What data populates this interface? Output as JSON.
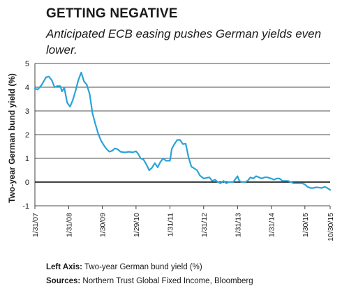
{
  "chart_data": {
    "type": "line",
    "title": "GETTING NEGATIVE",
    "subtitle": "Anticipated ECB easing pushes German yields even lower.",
    "ylabel": "Two-year German bund yield (%)",
    "xlabel": "",
    "ylim": [
      -1,
      5
    ],
    "yticks": [
      -1,
      0,
      1,
      2,
      3,
      4,
      5
    ],
    "xlim": [
      "2007-01-31",
      "2015-10-30"
    ],
    "xticks": [
      "1/31/07",
      "1/31/08",
      "1/30/09",
      "1/29/10",
      "1/31/11",
      "1/31/12",
      "1/31/13",
      "1/31/14",
      "1/30/15",
      "10/30/15"
    ],
    "grid": "horizontal",
    "series": [
      {
        "color": "#2aa3d9",
        "points": [
          [
            "2007-01-31",
            3.95
          ],
          [
            "2007-03-01",
            3.9
          ],
          [
            "2007-04-15",
            4.1
          ],
          [
            "2007-06-01",
            4.42
          ],
          [
            "2007-07-01",
            4.45
          ],
          [
            "2007-08-01",
            4.3
          ],
          [
            "2007-09-01",
            4.0
          ],
          [
            "2007-10-01",
            4.05
          ],
          [
            "2007-11-01",
            4.05
          ],
          [
            "2007-11-20",
            3.82
          ],
          [
            "2007-12-15",
            3.98
          ],
          [
            "2008-01-15",
            3.35
          ],
          [
            "2008-02-15",
            3.18
          ],
          [
            "2008-03-15",
            3.45
          ],
          [
            "2008-04-15",
            3.85
          ],
          [
            "2008-05-15",
            4.3
          ],
          [
            "2008-06-15",
            4.62
          ],
          [
            "2008-07-15",
            4.25
          ],
          [
            "2008-08-15",
            4.1
          ],
          [
            "2008-09-15",
            3.7
          ],
          [
            "2008-10-15",
            2.9
          ],
          [
            "2008-11-15",
            2.45
          ],
          [
            "2008-12-15",
            2.05
          ],
          [
            "2009-01-15",
            1.75
          ],
          [
            "2009-02-15",
            1.55
          ],
          [
            "2009-03-15",
            1.4
          ],
          [
            "2009-04-15",
            1.28
          ],
          [
            "2009-05-15",
            1.32
          ],
          [
            "2009-06-15",
            1.42
          ],
          [
            "2009-07-15",
            1.38
          ],
          [
            "2009-08-15",
            1.28
          ],
          [
            "2009-10-01",
            1.25
          ],
          [
            "2009-11-15",
            1.28
          ],
          [
            "2009-12-20",
            1.25
          ],
          [
            "2010-01-29",
            1.3
          ],
          [
            "2010-02-20",
            1.2
          ],
          [
            "2010-03-20",
            1.0
          ],
          [
            "2010-04-20",
            0.95
          ],
          [
            "2010-05-20",
            0.75
          ],
          [
            "2010-06-20",
            0.5
          ],
          [
            "2010-07-20",
            0.6
          ],
          [
            "2010-08-20",
            0.8
          ],
          [
            "2010-09-20",
            0.62
          ],
          [
            "2010-10-20",
            0.85
          ],
          [
            "2010-11-20",
            1.0
          ],
          [
            "2010-12-20",
            0.9
          ],
          [
            "2011-01-31",
            0.9
          ],
          [
            "2011-02-20",
            1.4
          ],
          [
            "2011-03-20",
            1.6
          ],
          [
            "2011-04-20",
            1.78
          ],
          [
            "2011-05-20",
            1.78
          ],
          [
            "2011-06-20",
            1.6
          ],
          [
            "2011-07-20",
            1.62
          ],
          [
            "2011-08-20",
            1.05
          ],
          [
            "2011-09-20",
            0.65
          ],
          [
            "2011-10-20",
            0.58
          ],
          [
            "2011-11-20",
            0.5
          ],
          [
            "2011-12-20",
            0.28
          ],
          [
            "2012-01-31",
            0.15
          ],
          [
            "2012-03-01",
            0.18
          ],
          [
            "2012-04-01",
            0.2
          ],
          [
            "2012-05-01",
            0.05
          ],
          [
            "2012-06-01",
            0.1
          ],
          [
            "2012-07-01",
            0.0
          ],
          [
            "2012-08-01",
            -0.05
          ],
          [
            "2012-09-01",
            0.05
          ],
          [
            "2012-10-01",
            -0.05
          ],
          [
            "2012-11-01",
            0.0
          ],
          [
            "2012-12-15",
            0.0
          ],
          [
            "2013-01-31",
            0.25
          ],
          [
            "2013-02-20",
            0.05
          ],
          [
            "2013-03-20",
            0.0
          ],
          [
            "2013-04-20",
            0.0
          ],
          [
            "2013-05-20",
            0.05
          ],
          [
            "2013-06-20",
            0.2
          ],
          [
            "2013-07-20",
            0.15
          ],
          [
            "2013-08-20",
            0.25
          ],
          [
            "2013-09-20",
            0.2
          ],
          [
            "2013-10-20",
            0.15
          ],
          [
            "2013-11-20",
            0.2
          ],
          [
            "2013-12-20",
            0.2
          ],
          [
            "2014-01-31",
            0.15
          ],
          [
            "2014-02-28",
            0.1
          ],
          [
            "2014-03-31",
            0.15
          ],
          [
            "2014-04-30",
            0.15
          ],
          [
            "2014-05-31",
            0.05
          ],
          [
            "2014-06-30",
            0.05
          ],
          [
            "2014-07-31",
            0.05
          ],
          [
            "2014-08-31",
            0.0
          ],
          [
            "2014-09-30",
            -0.05
          ],
          [
            "2014-10-31",
            -0.05
          ],
          [
            "2014-11-30",
            -0.05
          ],
          [
            "2014-12-31",
            -0.05
          ],
          [
            "2015-01-30",
            -0.1
          ],
          [
            "2015-02-28",
            -0.2
          ],
          [
            "2015-03-31",
            -0.25
          ],
          [
            "2015-04-30",
            -0.25
          ],
          [
            "2015-05-31",
            -0.22
          ],
          [
            "2015-06-30",
            -0.23
          ],
          [
            "2015-07-31",
            -0.25
          ],
          [
            "2015-08-31",
            -0.2
          ],
          [
            "2015-09-30",
            -0.25
          ],
          [
            "2015-10-30",
            -0.33
          ]
        ]
      }
    ]
  },
  "notes": {
    "left_axis_label": "Left Axis:",
    "left_axis_text": "Two-year German bund yield (%)",
    "sources_label": "Sources:",
    "sources_text": "Northern Trust Global Fixed Income, Bloomberg"
  }
}
